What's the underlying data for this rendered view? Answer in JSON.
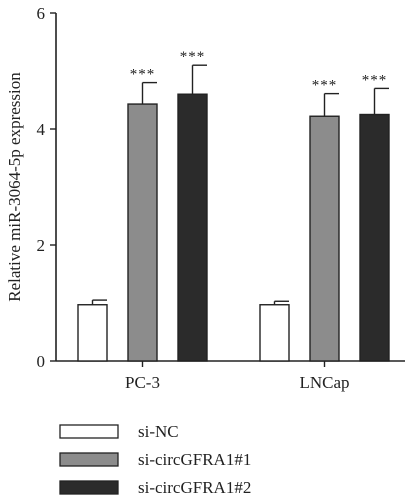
{
  "chart_data": {
    "type": "bar",
    "title": "",
    "xlabel": "",
    "ylabel": "Relative miR-3064-5p expression",
    "ylim": [
      0,
      6
    ],
    "yticks": [
      0,
      2,
      4,
      6
    ],
    "categories": [
      "PC-3",
      "LNCap"
    ],
    "series": [
      {
        "name": "si-NC",
        "color": "#ffffff",
        "values": [
          0.97,
          0.97
        ],
        "errors": [
          0.08,
          0.06
        ],
        "significance": [
          "",
          ""
        ]
      },
      {
        "name": "si-circGFRA1#1",
        "color": "#8c8c8c",
        "values": [
          4.43,
          4.22
        ],
        "errors": [
          0.37,
          0.39
        ],
        "significance": [
          "***",
          "***"
        ]
      },
      {
        "name": "si-circGFRA1#2",
        "color": "#2b2b2b",
        "values": [
          4.6,
          4.25
        ],
        "errors": [
          0.5,
          0.45
        ],
        "significance": [
          "***",
          "***"
        ]
      }
    ],
    "grid": false,
    "legend": "bottom-left",
    "error_bars": true
  }
}
